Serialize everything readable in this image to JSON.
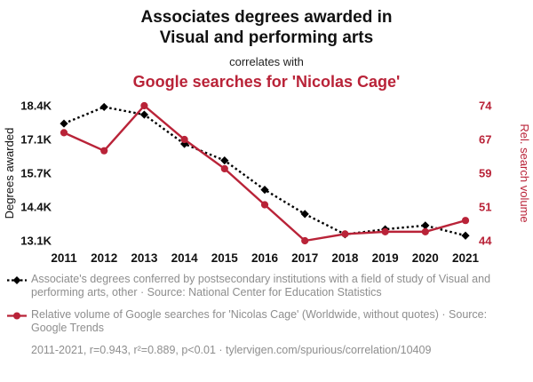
{
  "header": {
    "title_line1": "Associates degrees awarded in",
    "title_line2": "Visual and performing arts",
    "connector": "correlates with",
    "subtitle": "Google searches for 'Nicolas Cage'"
  },
  "colors": {
    "accent_red": "#b92338",
    "series_black": "#000000",
    "muted_gray": "#8e8e8e"
  },
  "chart_data": {
    "type": "line",
    "x_ticks": [
      "2011",
      "2012",
      "2013",
      "2014",
      "2015",
      "2016",
      "2017",
      "2018",
      "2019",
      "2020",
      "2021"
    ],
    "left_axis": {
      "label": "Degrees awarded",
      "ticks": [
        "18.4K",
        "17.1K",
        "15.7K",
        "14.4K",
        "13.1K"
      ],
      "range_min": 13100,
      "range_max": 18400
    },
    "right_axis": {
      "label": "Rel. search volume",
      "ticks": [
        "74",
        "67",
        "59",
        "51",
        "44"
      ],
      "range_min": 44,
      "range_max": 74
    },
    "series": [
      {
        "name": "Associate's degrees in Visual and performing arts, other",
        "axis": "left",
        "color": "#000000",
        "style": "dashed-diamond",
        "values": [
          17700,
          18350,
          18050,
          16900,
          16250,
          15100,
          14150,
          13350,
          13550,
          13700,
          13300
        ]
      },
      {
        "name": "Google searches for 'Nicolas Cage'",
        "axis": "right",
        "color": "#b92338",
        "style": "solid-circle",
        "values": [
          68,
          64,
          74,
          66.5,
          60,
          52,
          44,
          45.5,
          46,
          46,
          48.5
        ]
      }
    ],
    "grid": false,
    "legend_position": "bottom"
  },
  "legend": [
    {
      "text": "Associate's degrees conferred by postsecondary institutions with a field of study of Visual and performing arts, other · Source: National Center for Education Statistics"
    },
    {
      "text": "Relative volume of Google searches for 'Nicolas Cage' (Worldwide, without quotes) · Source: Google Trends"
    }
  ],
  "footer": "2011-2021, r=0.943, r²=0.889, p<0.01 · tylervigen.com/spurious/correlation/10409"
}
